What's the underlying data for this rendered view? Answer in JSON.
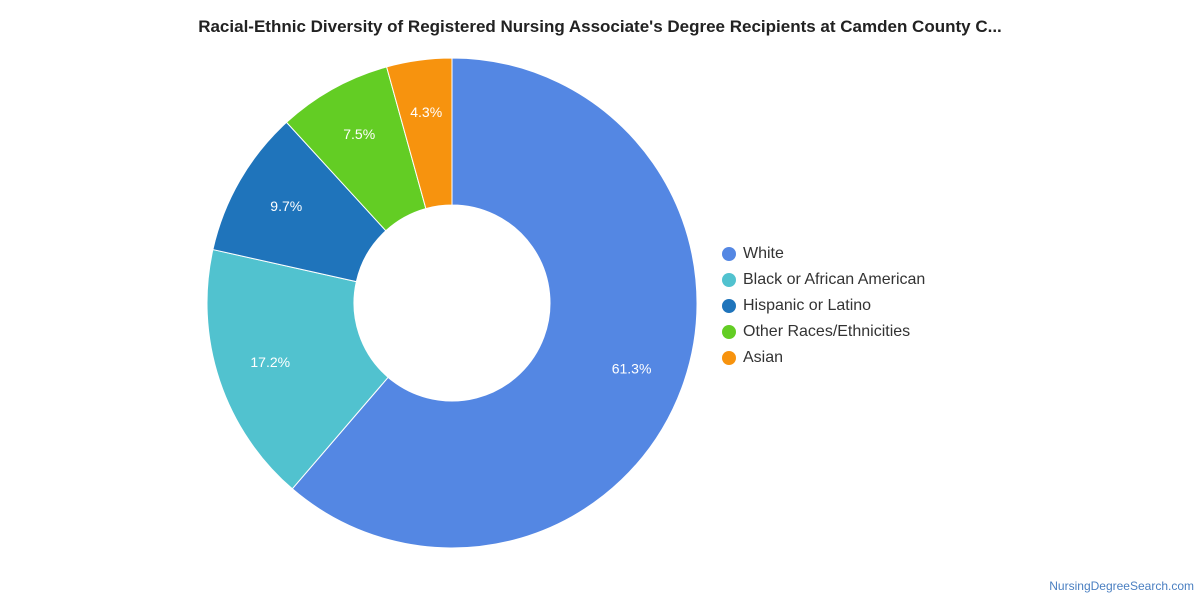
{
  "title": "Racial-Ethnic Diversity of Registered Nursing Associate's Degree Recipients at Camden County C...",
  "source_credit": "NursingDegreeSearch.com",
  "chart_data": {
    "type": "pie",
    "donut": true,
    "title": "Racial-Ethnic Diversity of Registered Nursing Associate's Degree Recipients at Camden County C...",
    "legend_position": "right",
    "slices": [
      {
        "label": "White",
        "value": 61.3,
        "display": "61.3%",
        "color": "#5487e3"
      },
      {
        "label": "Black or African American",
        "value": 17.2,
        "display": "17.2%",
        "color": "#51c2cf"
      },
      {
        "label": "Hispanic or Latino",
        "value": 9.7,
        "display": "9.7%",
        "color": "#1f74bb"
      },
      {
        "label": "Other Races/Ethnicities",
        "value": 7.5,
        "display": "7.5%",
        "color": "#63cd24"
      },
      {
        "label": "Asian",
        "value": 4.3,
        "display": "4.3%",
        "color": "#f7930e"
      }
    ]
  }
}
